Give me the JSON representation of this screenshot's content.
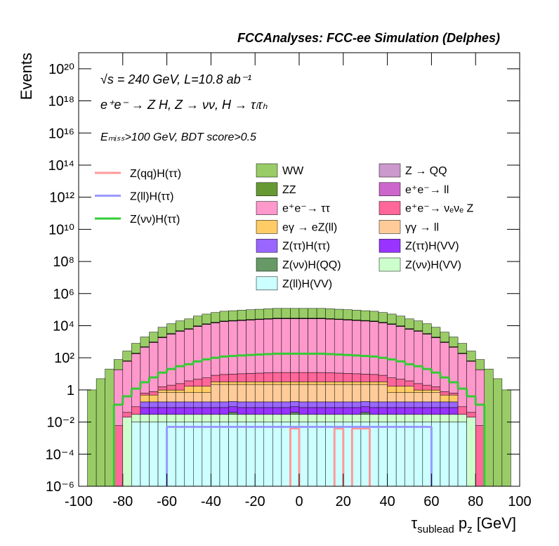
{
  "chart_data": {
    "type": "stacked-histogram",
    "title": "FCCAnalyses: FCC-ee Simulation (Delphes)",
    "annotations": [
      "√s = 240 GeV, L=10.8 ab⁻¹",
      "e⁺e⁻ → Z H, Z → νν, H → τₗτₕ",
      "Eₘᵢₛₛ>100 GeV, BDT score>0.5"
    ],
    "x_label": [
      "τ",
      "sublead",
      " p",
      "z",
      " [GeV]"
    ],
    "y_label": "Events",
    "log_y": true,
    "xlim": [
      -100,
      100
    ],
    "xticks": [
      -100,
      -80,
      -60,
      -40,
      -20,
      0,
      20,
      40,
      60,
      80,
      100
    ],
    "ylim": [
      1e-06,
      1e+21
    ],
    "yticks": [
      {
        "value": 1e-06,
        "label": "10⁻⁶"
      },
      {
        "value": 0.0001,
        "label": "10⁻⁴"
      },
      {
        "value": 0.01,
        "label": "10⁻²"
      },
      1,
      {
        "value": 100,
        "label": "10²"
      },
      {
        "value": 10000.0,
        "label": "10⁴"
      },
      {
        "value": 1000000.0,
        "label": "10⁶"
      },
      {
        "value": 100000000.0,
        "label": "10⁸"
      },
      {
        "value": 10000000000.0,
        "label": "10¹⁰"
      },
      {
        "value": 1000000000000.0,
        "label": "10¹²"
      },
      {
        "value": 100000000000000.0,
        "label": "10¹⁴"
      },
      {
        "value": 1e+16,
        "label": "10¹⁶"
      },
      {
        "value": 1e+18,
        "label": "10¹⁸"
      },
      {
        "value": 1e+20,
        "label": "10²⁰"
      }
    ],
    "bins": [
      -100,
      -96,
      -92,
      -88,
      -84,
      -80,
      -76,
      -72,
      -68,
      -64,
      -60,
      -56,
      -52,
      -48,
      -44,
      -40,
      -36,
      -32,
      -28,
      -24,
      -20,
      -16,
      -12,
      -8,
      -4,
      0,
      4,
      8,
      12,
      16,
      20,
      24,
      28,
      32,
      36,
      40,
      44,
      48,
      52,
      56,
      60,
      64,
      68,
      72,
      76,
      80,
      84,
      88,
      92,
      96,
      100
    ],
    "series": [
      {
        "name": "WW",
        "color": "#99cc66",
        "values": [
          0,
          1,
          5,
          20,
          60,
          200,
          600,
          1500,
          3000,
          6000,
          10000,
          15000,
          20000,
          30000,
          40000,
          50000,
          60000,
          65000,
          70000,
          75000,
          80000,
          85000,
          90000,
          90000,
          90000,
          90000,
          90000,
          90000,
          85000,
          80000,
          75000,
          70000,
          65000,
          60000,
          50000,
          40000,
          30000,
          20000,
          15000,
          10000,
          6000,
          3000,
          1500,
          600,
          200,
          60,
          20,
          5,
          1,
          0
        ]
      },
      {
        "name": "Z → QQ",
        "color": "#cc99cc",
        "values": [
          0,
          0,
          0,
          0,
          0,
          0,
          0,
          0,
          0,
          0,
          0,
          0,
          0,
          5,
          5,
          5,
          5,
          5,
          5,
          5,
          5,
          5,
          100,
          100,
          100,
          100,
          100,
          100,
          5,
          5,
          5,
          5,
          5,
          5,
          5,
          5,
          5,
          0,
          0,
          0,
          0,
          0,
          0,
          0,
          0,
          0,
          0,
          0,
          0,
          0
        ]
      },
      {
        "name": "ZZ",
        "color": "#669933",
        "values": [
          0,
          0,
          0,
          0,
          0,
          4,
          12,
          30,
          60,
          120,
          200,
          300,
          400,
          600,
          800,
          1000,
          1200,
          1300,
          1400,
          1500,
          1600,
          1700,
          1800,
          1800,
          1800,
          1800,
          1800,
          1800,
          1700,
          1600,
          1500,
          1400,
          1300,
          1200,
          1000,
          800,
          600,
          400,
          300,
          200,
          120,
          60,
          30,
          12,
          4,
          0,
          0,
          0,
          0,
          0
        ]
      },
      {
        "name": "e⁺e⁻→ ll",
        "color": "#cc66cc",
        "values": [
          0,
          0,
          0,
          0,
          0.3,
          1,
          3,
          7.5,
          15,
          30,
          50,
          75,
          100,
          150,
          200,
          250,
          300,
          325,
          350,
          375,
          400,
          425,
          450,
          450,
          450,
          450,
          450,
          450,
          425,
          400,
          375,
          350,
          325,
          300,
          250,
          200,
          150,
          100,
          75,
          50,
          30,
          15,
          7.5,
          3,
          1,
          0.3,
          0,
          0,
          0,
          0
        ]
      },
      {
        "name": "e⁺e⁻→ ττ",
        "color": "#ff99cc",
        "values": [
          0,
          0,
          0,
          0,
          18,
          60,
          180,
          450,
          900,
          1800,
          3000,
          4500,
          6000,
          9000,
          12000,
          15000,
          18000,
          19500,
          21000,
          22500,
          24000,
          25500,
          27000,
          27000,
          27000,
          27000,
          27000,
          27000,
          25500,
          24000,
          22500,
          21000,
          19500,
          18000,
          15000,
          12000,
          9000,
          6000,
          4500,
          3000,
          1800,
          900,
          450,
          180,
          60,
          18,
          0,
          0,
          0,
          0
        ]
      },
      {
        "name": "e⁺e⁻→ νₑνₑ Z",
        "color": "#ff6699",
        "values": [
          0,
          0,
          0,
          0,
          0.006,
          0.02,
          0.06,
          0.15,
          0.3,
          0.6,
          1,
          1.5,
          2,
          3,
          4,
          5,
          6,
          6.5,
          7,
          7.5,
          8,
          8.5,
          9,
          9,
          9,
          9,
          9,
          9,
          8.5,
          8,
          7.5,
          7,
          6.5,
          6,
          5,
          4,
          3,
          2,
          1.5,
          1,
          0.6,
          0.3,
          0.15,
          0.06,
          0.02,
          0.006,
          0,
          0,
          0,
          0
        ]
      },
      {
        "name": "eγ → eZ(ll)",
        "color": "#ffcc66",
        "values": [
          0,
          0,
          0,
          0,
          0,
          0,
          0,
          0.3,
          0.3,
          0.3,
          0.3,
          0.3,
          1,
          1,
          1,
          1,
          1,
          1,
          1,
          1,
          1,
          1,
          1,
          1,
          1,
          1,
          1,
          1,
          1,
          1,
          1,
          1,
          1,
          1,
          1,
          1,
          1,
          1,
          0.3,
          0.3,
          0.3,
          0.3,
          0.3,
          0,
          0,
          0,
          0,
          0,
          0,
          0
        ]
      },
      {
        "name": "γγ → ll",
        "color": "#ffcc99",
        "values": [
          0,
          0,
          0,
          0,
          0,
          0,
          0,
          0,
          0,
          0.5,
          0.5,
          0.5,
          0.5,
          0.5,
          0.5,
          2,
          2,
          2,
          2,
          2,
          2,
          2,
          2,
          2,
          2,
          2,
          2,
          2,
          2,
          2,
          2,
          2,
          2,
          2,
          2,
          0.5,
          0.5,
          0.5,
          0.5,
          0.5,
          0.5,
          0,
          0,
          0,
          0,
          0,
          0,
          0,
          0,
          0
        ]
      },
      {
        "name": "Z(ττ)H(ττ)",
        "color": "#9966ff",
        "values": [
          0,
          0,
          0,
          0,
          0,
          0,
          0,
          0.1,
          0.1,
          0.1,
          0.1,
          0.1,
          0.1,
          0.1,
          0.1,
          0.1,
          0.1,
          0.1,
          0.1,
          0.1,
          0.1,
          0.1,
          0.1,
          0.1,
          0.1,
          0.1,
          0.1,
          0.1,
          0.1,
          0.1,
          0.1,
          0.1,
          0.1,
          0.1,
          0.1,
          0.1,
          0.1,
          0.1,
          0.1,
          0.1,
          0.1,
          0.1,
          0.1,
          0,
          0,
          0,
          0,
          0,
          0,
          0
        ]
      },
      {
        "name": "Z(ττ)H(VV)",
        "color": "#9933ff",
        "values": [
          0,
          0,
          0,
          0,
          0,
          0,
          0,
          0.05,
          0.05,
          0.05,
          0.05,
          0.05,
          0.05,
          0.05,
          0.05,
          0.05,
          0.05,
          0.05,
          0.05,
          0.05,
          0.05,
          0.05,
          0.05,
          0.05,
          0.05,
          0.05,
          0.05,
          0.05,
          0.05,
          0.05,
          0.05,
          0.05,
          0.05,
          0.05,
          0.05,
          0.05,
          0.05,
          0.05,
          0.05,
          0.05,
          0.05,
          0.05,
          0.05,
          0,
          0,
          0,
          0,
          0,
          0,
          0
        ]
      },
      {
        "name": "Z(νν)H(QQ)",
        "color": "#669966",
        "values": [
          0,
          0,
          0,
          0,
          0,
          0,
          0,
          0,
          0,
          0,
          0,
          0,
          0,
          0,
          0,
          0,
          0,
          0.01,
          0,
          0,
          0,
          0,
          0,
          0,
          0.01,
          0,
          0,
          0,
          0,
          0,
          0,
          0,
          0.01,
          0,
          0,
          0,
          0,
          0,
          0,
          0,
          0,
          0,
          0,
          0,
          0,
          0,
          0,
          0,
          0,
          0
        ]
      },
      {
        "name": "Z(νν)H(VV)",
        "color": "#ccffcc",
        "values": [
          0,
          0,
          0,
          0,
          0,
          0.02,
          0.02,
          0.02,
          0.02,
          0.02,
          0.02,
          0.02,
          0.02,
          0.02,
          0.02,
          0.02,
          0.02,
          0.02,
          0.02,
          0.02,
          0.02,
          0.02,
          0.02,
          0.02,
          0.02,
          0.02,
          0.02,
          0.02,
          0.02,
          0.02,
          0.02,
          0.02,
          0.02,
          0.02,
          0.02,
          0.02,
          0.02,
          0.02,
          0.02,
          0.02,
          0.02,
          0.02,
          0.02,
          0.02,
          0.02,
          0,
          0,
          0,
          0,
          0
        ]
      },
      {
        "name": "Z(ll)H(VV)",
        "color": "#ccffff",
        "values": [
          0,
          0,
          0,
          0,
          0,
          0,
          0.01,
          0.01,
          0.01,
          0.01,
          0.01,
          0.01,
          0.01,
          0.01,
          0.01,
          0.01,
          0.01,
          0.01,
          0.01,
          0.01,
          0.01,
          0.01,
          0.01,
          0.01,
          0.01,
          0.01,
          0.01,
          0.01,
          0.01,
          0.01,
          0.01,
          0.01,
          0.01,
          0.01,
          0.01,
          0.01,
          0.01,
          0.01,
          0.01,
          0.01,
          0.01,
          0.01,
          0.01,
          0.01,
          0,
          0,
          0,
          0,
          0,
          0
        ]
      }
    ],
    "lines": [
      {
        "name": "Z(qq)H(ττ)",
        "color": "#ff9999",
        "values": [
          0,
          0,
          0,
          0,
          0,
          0,
          0,
          0,
          0,
          0,
          0,
          0,
          0,
          0,
          0,
          0,
          0,
          0,
          0,
          0,
          0,
          0,
          0,
          0,
          0.004,
          0,
          0,
          0,
          0,
          0.004,
          0,
          0.004,
          0.004,
          0,
          0,
          0,
          0,
          0,
          0,
          0,
          0,
          0,
          0,
          0,
          0,
          0,
          0,
          0,
          0,
          0
        ]
      },
      {
        "name": "Z(ll)H(ττ)",
        "color": "#9999ff",
        "values": [
          0,
          0,
          0,
          0,
          0,
          0,
          0,
          0,
          0,
          0,
          0.005,
          0.005,
          0.005,
          0.005,
          0.005,
          0.005,
          0.005,
          0.005,
          0.005,
          0.005,
          0.005,
          0.005,
          0.005,
          0.005,
          0.005,
          0.005,
          0.005,
          0.005,
          0.005,
          0.005,
          0.005,
          0.005,
          0.005,
          0.005,
          0.005,
          0.005,
          0.005,
          0.005,
          0.005,
          0.005,
          0,
          0,
          0,
          0,
          0,
          0,
          0,
          0,
          0,
          0
        ]
      },
      {
        "name": "Z(νν)H(ττ)",
        "color": "#33cc33",
        "values": [
          0,
          0,
          0,
          0,
          0.12,
          0.4,
          1.2,
          3,
          6,
          12,
          20,
          30,
          40,
          60,
          80,
          100,
          120,
          130,
          140,
          150,
          160,
          170,
          180,
          180,
          180,
          180,
          180,
          180,
          170,
          160,
          150,
          140,
          130,
          120,
          100,
          80,
          60,
          40,
          30,
          20,
          12,
          6,
          3,
          1.2,
          0.4,
          0.12,
          0,
          0,
          0,
          0
        ]
      }
    ]
  }
}
